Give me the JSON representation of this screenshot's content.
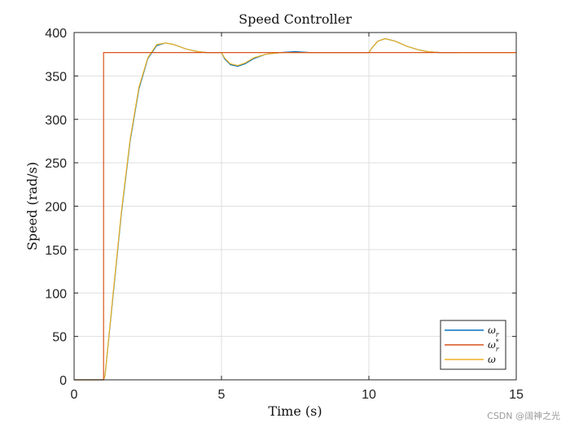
{
  "watermark": "CSDN @阔神之光",
  "chart_data": {
    "type": "line",
    "title": "Speed Controller",
    "xlabel": "Time (s)",
    "ylabel": "Speed (rad/s)",
    "xlim": [
      0,
      15
    ],
    "ylim": [
      0,
      400
    ],
    "xticks": [
      0,
      5,
      10,
      15
    ],
    "yticks": [
      0,
      50,
      100,
      150,
      200,
      250,
      300,
      350,
      400
    ],
    "grid": true,
    "legend_position": "bottom-right",
    "series": [
      {
        "name": "ω_r",
        "label_base": "ω",
        "label_sub": "r",
        "label_sup": "",
        "color": "#0072BD",
        "x": [
          0,
          1.0,
          1.05,
          1.3,
          1.6,
          1.9,
          2.2,
          2.5,
          2.8,
          3.1,
          3.4,
          3.8,
          4.2,
          4.5,
          5.0,
          5.1,
          5.3,
          5.55,
          5.8,
          6.1,
          6.5,
          7.0,
          7.5,
          8.0,
          9.0,
          10.0,
          10.1,
          10.3,
          10.55,
          10.9,
          11.3,
          11.7,
          12.0,
          12.4,
          12.8,
          13.0
        ],
        "y": [
          0,
          0,
          5,
          90,
          190,
          275,
          335,
          370,
          385,
          388,
          386,
          381,
          378,
          377,
          377,
          370,
          363,
          361,
          364,
          370,
          375,
          377,
          378,
          377,
          377,
          377,
          382,
          390,
          393,
          390,
          384,
          380,
          378,
          377,
          377,
          377
        ]
      },
      {
        "name": "ω_r*",
        "label_base": "ω",
        "label_sub": "r",
        "label_sup": "*",
        "color": "#D95319",
        "x": [
          0,
          1.0,
          1.0,
          15.0
        ],
        "y": [
          0,
          0,
          377,
          377
        ]
      },
      {
        "name": "ω",
        "label_base": "ω",
        "label_sub": "",
        "label_sup": "",
        "color": "#EDB120",
        "x": [
          0,
          1.0,
          1.05,
          1.3,
          1.6,
          1.9,
          2.2,
          2.5,
          2.8,
          3.1,
          3.4,
          3.8,
          4.2,
          4.5,
          5.0,
          5.1,
          5.3,
          5.55,
          5.8,
          6.1,
          6.5,
          7.0,
          7.5,
          8.0,
          9.0,
          10.0,
          10.1,
          10.3,
          10.55,
          10.9,
          11.3,
          11.7,
          12.0,
          12.4,
          12.8,
          13.5,
          15.0
        ],
        "y": [
          0,
          0,
          5,
          92,
          192,
          277,
          337,
          371,
          386,
          388,
          386,
          381,
          378,
          377,
          377,
          371,
          364,
          362,
          365,
          371,
          375,
          377,
          377,
          377,
          377,
          377,
          382,
          390,
          393,
          390,
          384,
          380,
          378,
          377,
          377,
          377,
          377
        ]
      }
    ]
  }
}
